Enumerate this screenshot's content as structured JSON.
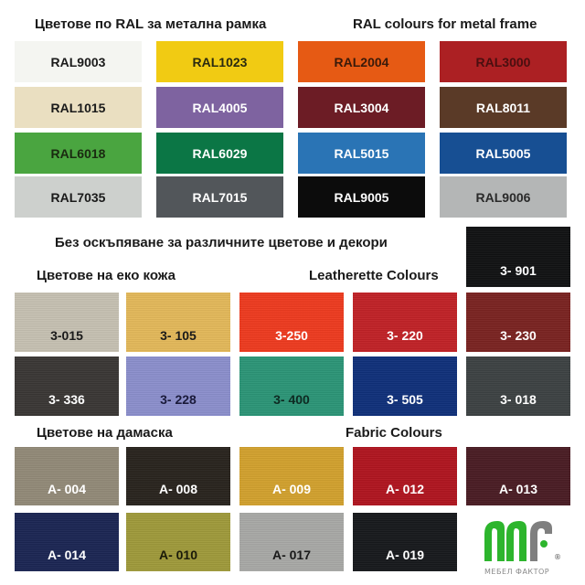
{
  "ral_section": {
    "title_bg": "Цветове по RAL за метална рамка",
    "title_en": "RAL colours for metal frame",
    "swatches": [
      {
        "label": "RAL9003",
        "color": "#f4f5f1",
        "text": "#1a1a1a"
      },
      {
        "label": "RAL1023",
        "color": "#f1cb13",
        "text": "#2a2a10"
      },
      {
        "label": "RAL2004",
        "color": "#e65a14",
        "text": "#3a1a0a"
      },
      {
        "label": "RAL3000",
        "color": "#ac2023",
        "text": "#4a0f10"
      },
      {
        "label": "RAL1015",
        "color": "#eadfc1",
        "text": "#1a1a1a"
      },
      {
        "label": "RAL4005",
        "color": "#7e63a0",
        "text": "#ffffff"
      },
      {
        "label": "RAL3004",
        "color": "#6c1c25",
        "text": "#ffffff"
      },
      {
        "label": "RAL8011",
        "color": "#5a3a27",
        "text": "#ffffff"
      },
      {
        "label": "RAL6018",
        "color": "#4aa540",
        "text": "#1a2a10"
      },
      {
        "label": "RAL6029",
        "color": "#0b7645",
        "text": "#ffffff"
      },
      {
        "label": "RAL5015",
        "color": "#2a74b5",
        "text": "#ffffff"
      },
      {
        "label": "RAL5005",
        "color": "#174f93",
        "text": "#ffffff"
      },
      {
        "label": "RAL7035",
        "color": "#cdd0cd",
        "text": "#1a1a1a"
      },
      {
        "label": "RAL7015",
        "color": "#52565a",
        "text": "#ffffff"
      },
      {
        "label": "RAL9005",
        "color": "#0c0c0c",
        "text": "#ffffff"
      },
      {
        "label": "RAL9006",
        "color": "#b4b6b6",
        "text": "#2a2a2a"
      }
    ]
  },
  "note": "Без оскъпяване за различните цветове и декори",
  "leather_section": {
    "title_bg": "Цветове на еко кожа",
    "title_en": "Leatherette Colours",
    "top_swatch": {
      "label": "3- 901",
      "color": "#111213",
      "text": "#ffffff"
    },
    "swatches": [
      {
        "label": "3-015",
        "color": "#c6c1b2",
        "text": "#1a1a1a"
      },
      {
        "label": "3- 105",
        "color": "#e3b85a",
        "text": "#1a1a1a"
      },
      {
        "label": "3-250",
        "color": "#ee3b1f",
        "text": "#ffffff"
      },
      {
        "label": "3- 220",
        "color": "#c12227",
        "text": "#ffffff"
      },
      {
        "label": "3- 230",
        "color": "#7a2321",
        "text": "#ffffff"
      },
      {
        "label": "3- 336",
        "color": "#3a3735",
        "text": "#ffffff"
      },
      {
        "label": "3- 228",
        "color": "#8b8fcc",
        "text": "#1a1a3a"
      },
      {
        "label": "3- 400",
        "color": "#2c9577",
        "text": "#0e2a22"
      },
      {
        "label": "3- 505",
        "color": "#10307a",
        "text": "#ffffff"
      },
      {
        "label": "3- 018",
        "color": "#3d4243",
        "text": "#ffffff"
      }
    ]
  },
  "fabric_section": {
    "title_bg": "Цветове на дамаска",
    "title_en": "Fabric Colours",
    "swatches": [
      {
        "label": "A- 004",
        "color": "#928a78",
        "text": "#ffffff"
      },
      {
        "label": "A- 008",
        "color": "#29241e",
        "text": "#ffffff"
      },
      {
        "label": "A- 009",
        "color": "#d2a12e",
        "text": "#ffffff"
      },
      {
        "label": "A- 012",
        "color": "#b0151f",
        "text": "#ffffff"
      },
      {
        "label": "A- 013",
        "color": "#4a1c24",
        "text": "#ffffff"
      },
      {
        "label": "A- 014",
        "color": "#1b2653",
        "text": "#ffffff"
      },
      {
        "label": "A- 010",
        "color": "#9f9a3b",
        "text": "#1a1a0a"
      },
      {
        "label": "A- 017",
        "color": "#a8a9a6",
        "text": "#1a1a1a"
      },
      {
        "label": "A- 019",
        "color": "#17191c",
        "text": "#ffffff"
      }
    ]
  },
  "logo": {
    "text": "мебел фактор",
    "colors": {
      "green": "#2db52d",
      "gray": "#7f7f7f"
    }
  }
}
